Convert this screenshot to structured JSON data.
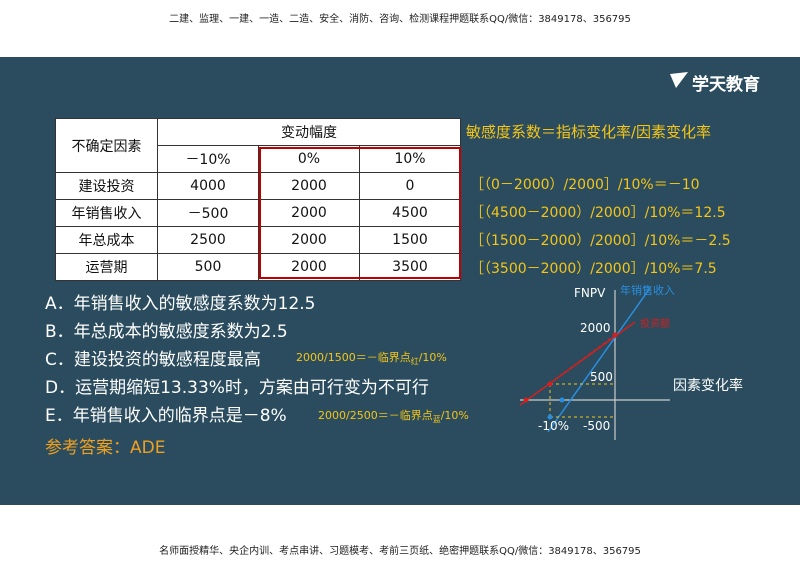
{
  "header": {
    "text": "二建、监理、一建、一造、二造、安全、消防、咨询、检测课程押题联系QQ/微信：3849178、356795"
  },
  "logo": {
    "text": "学天教育"
  },
  "table": {
    "corner": "不确定因素",
    "group": "变动幅度",
    "columns": [
      "－10%",
      "0%",
      "10%"
    ],
    "rows": [
      [
        "建设投资",
        "4000",
        "2000",
        "0"
      ],
      [
        "年销售收入",
        "－500",
        "2000",
        "4500"
      ],
      [
        "年总成本",
        "2500",
        "2000",
        "1500"
      ],
      [
        "运营期",
        "500",
        "2000",
        "3500"
      ]
    ]
  },
  "formula": {
    "title": "敏感度系数＝指标变化率/因素变化率",
    "lines": [
      "［（0－2000）/2000］/10%＝－10",
      "［（4500－2000）/2000］/10%＝12.5",
      "［（1500－2000）/2000］/10%＝－2.5",
      "［（3500－2000）/2000］/10%＝7.5"
    ]
  },
  "statements": [
    "A．年销售收入的敏感度系数为12.5",
    "B．年总成本的敏感度系数为2.5",
    "C．建设投资的敏感程度最高",
    "D．运营期缩短13.33%时，方案由可行变为不可行",
    "E．年销售收入的临界点是－8%"
  ],
  "notes": [
    {
      "text": "2000/1500＝－临界点",
      "sub": "红",
      "tail": "/10%"
    },
    {
      "text": "2000/2500＝－临界点",
      "sub": "蓝",
      "tail": "/10%"
    }
  ],
  "answer": "参考答案：ADE",
  "diagram": {
    "y_label": "FNPV",
    "x_label": "因素变化率",
    "series": [
      "年销售收入",
      "投资额"
    ],
    "labels": [
      "2000",
      "500",
      "-10%",
      "-500"
    ]
  },
  "footer": {
    "text": "名师面授精华、央企内训、考点串讲、习题模考、考前三页纸、绝密押题联系QQ/微信：3849178、356795"
  }
}
